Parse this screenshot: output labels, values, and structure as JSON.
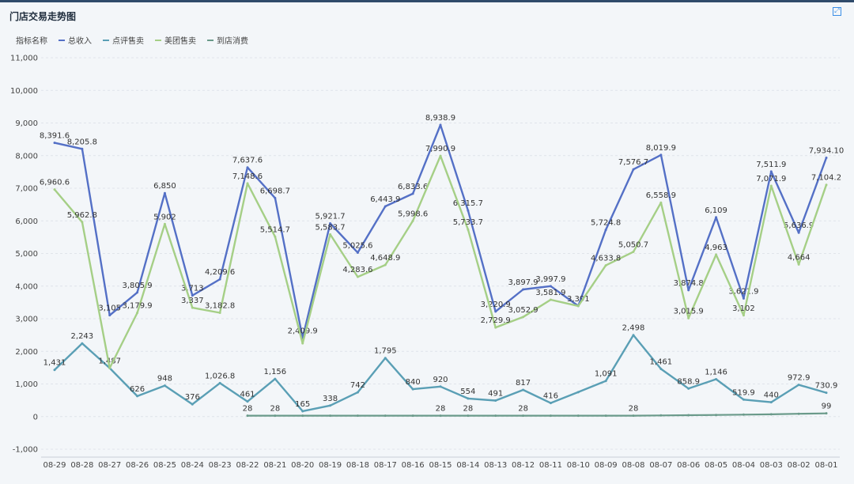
{
  "header": {
    "title": "门店交易走势图",
    "expand_icon": "expand-icon"
  },
  "legend": {
    "label": "指标名称"
  },
  "chart_data": {
    "type": "line",
    "categories": [
      "08-29",
      "08-28",
      "08-27",
      "08-26",
      "08-25",
      "08-24",
      "08-23",
      "08-22",
      "08-21",
      "08-20",
      "08-19",
      "08-18",
      "08-17",
      "08-16",
      "08-15",
      "08-14",
      "08-13",
      "08-12",
      "08-11",
      "08-10",
      "08-09",
      "08-08",
      "08-07",
      "08-06",
      "08-05",
      "08-04",
      "08-03",
      "08-02",
      "08-01"
    ],
    "ylim": [
      -1000,
      11000
    ],
    "yticks": [
      -1000,
      0,
      1000,
      2000,
      3000,
      4000,
      5000,
      6000,
      7000,
      8000,
      9000,
      10000,
      11000
    ],
    "ytick_labels": [
      "-1,000",
      "0",
      "1,000",
      "2,000",
      "3,000",
      "4,000",
      "5,000",
      "6,000",
      "7,000",
      "8,000",
      "9,000",
      "10,000",
      "11,000"
    ],
    "series": [
      {
        "name": "总收入",
        "color": "#5470c6",
        "values": [
          8391.6,
          8205.8,
          3105,
          3805.9,
          6850,
          3713,
          4209.6,
          7637.6,
          6698.7,
          2409.9,
          5921.7,
          5025.6,
          6443.9,
          6833.6,
          8938.9,
          6315.7,
          3220.9,
          3897.9,
          3997.9,
          3391,
          5724.8,
          7576.7,
          8019.9,
          3874.8,
          6109,
          3621.9,
          7511.9,
          5636.9,
          7934.1
        ],
        "labels": [
          "8,391.6",
          "8,205.8",
          "3,105",
          "3,805.9",
          "6,850",
          "3,713",
          "4,209.6",
          "7,637.6",
          "6,698.7",
          "2,409.9",
          "5,921.7",
          "5,025.6",
          "6,443.9",
          "6,833.6",
          "8,938.9",
          "6,315.7",
          "3,220.9",
          "3,897.9",
          "3,997.9",
          "3,391",
          "5,724.8",
          "7,576.7",
          "8,019.9",
          "3,874.8",
          "6,109",
          "3,621.9",
          "7,511.9",
          "5,636.9",
          "7,934.10"
        ]
      },
      {
        "name": "点评售卖",
        "color": "#5a9fb5",
        "values": [
          1431,
          2243,
          1487,
          626,
          948,
          376,
          1026.8,
          461,
          1156,
          165,
          338,
          742,
          1795,
          840,
          920,
          554,
          491,
          817,
          416,
          750,
          1091,
          2498,
          1461,
          858.9,
          1146,
          519.9,
          440,
          972.9,
          730.9
        ],
        "labels": [
          "1,431",
          "2,243",
          "1,487",
          "626",
          "948",
          "376",
          "1,026.8",
          "461",
          "1,156",
          "165",
          "338",
          "742",
          "1,795",
          "840",
          "920",
          "554",
          "491",
          "817",
          "416",
          "",
          "1,091",
          "2,498",
          "1,461",
          "858.9",
          "1,146",
          "519.9",
          "440",
          "972.9",
          "730.9"
        ]
      },
      {
        "name": "美团售卖",
        "color": "#a5cf86",
        "values": [
          6960.6,
          5962.8,
          1487,
          3179.9,
          5902,
          3337,
          3182.8,
          7148.6,
          5514.7,
          2244,
          5583.7,
          4283.6,
          4648.9,
          5998.6,
          7990.9,
          5733.7,
          2729.9,
          3052.9,
          3581.9,
          3391,
          4633.8,
          5050.7,
          6558.9,
          3015.9,
          4963,
          3102,
          7071.9,
          4664,
          7104.2
        ],
        "labels": [
          "6,960.6",
          "5,962.8",
          "",
          "3,179.9",
          "5,902",
          "3,337",
          "3,182.8",
          "7,148.6",
          "5,514.7",
          "",
          "5,583.7",
          "4,283.6",
          "4,648.9",
          "5,998.6",
          "7,990.9",
          "5,733.7",
          "2,729.9",
          "3,052.9",
          "3,581.9",
          "",
          "4,633.8",
          "5,050.7",
          "6,558.9",
          "3,015.9",
          "4,963",
          "3,102",
          "7,071.9",
          "4,664",
          "7,104.2"
        ]
      },
      {
        "name": "到店消费",
        "color": "#6a9a8a",
        "values": [
          null,
          null,
          null,
          null,
          null,
          null,
          null,
          28,
          28,
          28,
          28,
          28,
          28,
          28,
          28,
          28,
          28,
          28,
          28,
          28,
          28,
          28,
          35,
          42,
          50,
          60,
          70,
          85,
          99
        ],
        "labels": [
          "",
          "",
          "",
          "",
          "",
          "",
          "",
          "28",
          "28",
          "",
          "",
          "",
          "",
          "",
          "28",
          "28",
          "",
          "28",
          "",
          "",
          "",
          "28",
          "",
          "",
          "",
          "",
          "",
          "",
          "99"
        ]
      }
    ]
  }
}
